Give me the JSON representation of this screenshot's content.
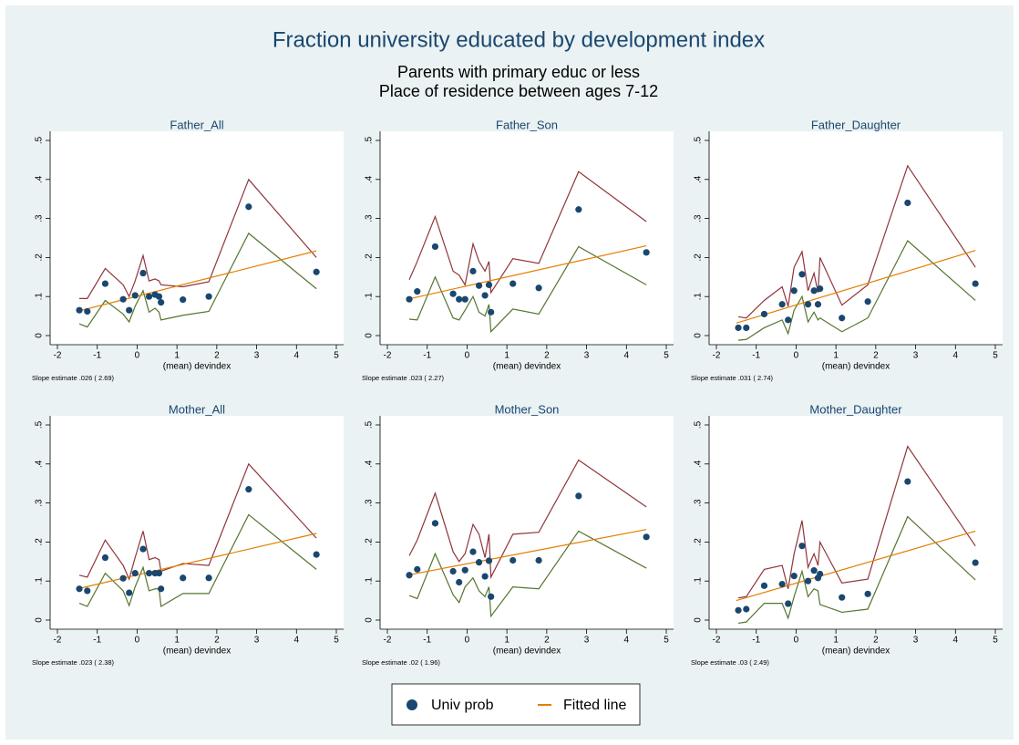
{
  "title": "Fraction university educated by development index",
  "subtitle": [
    "Parents with primary educ or less",
    "Place of residence between ages 7-12"
  ],
  "chart_data": [
    {
      "type": "scatter",
      "title": "Father_All",
      "xlabel": "(mean) devindex",
      "note": "Slope estimate .026 ( 2.69)",
      "x": [
        -1.45,
        -1.25,
        -0.8,
        -0.35,
        -0.2,
        -0.05,
        0.15,
        0.3,
        0.45,
        0.55,
        0.6,
        1.15,
        1.8,
        2.8,
        4.5
      ],
      "xlim": [
        -2,
        5
      ],
      "xticks": [
        -2,
        -1,
        0,
        1,
        2,
        3,
        4,
        5
      ],
      "ylim": [
        0,
        0.5
      ],
      "yticks": [
        0,
        {
          "value": 0.1,
          "label": ".1"
        },
        {
          "value": 0.2,
          "label": ".2"
        },
        {
          "value": 0.3,
          "label": ".3"
        },
        {
          "value": 0.4,
          "label": ".4"
        },
        {
          "value": 0.5,
          "label": ".5"
        }
      ],
      "series": [
        {
          "name": "Univ prob",
          "type": "scatter",
          "color": "#1a476f",
          "values": [
            0.065,
            0.062,
            0.133,
            0.093,
            0.065,
            0.103,
            0.16,
            0.1,
            0.105,
            0.1,
            0.085,
            0.092,
            0.1,
            0.33,
            0.163
          ]
        },
        {
          "name": "Fitted line",
          "type": "line",
          "color": "#e37e00",
          "x": [
            -1.5,
            4.5
          ],
          "values": [
            0.062,
            0.217
          ]
        },
        {
          "type": "line",
          "color": "#90353b",
          "values": [
            0.095,
            0.095,
            0.172,
            0.13,
            0.1,
            0.14,
            0.205,
            0.14,
            0.145,
            0.14,
            0.13,
            0.125,
            0.138,
            0.4,
            0.2
          ]
        },
        {
          "type": "line",
          "color": "#55752f",
          "values": [
            0.03,
            0.022,
            0.09,
            0.055,
            0.035,
            0.075,
            0.115,
            0.06,
            0.07,
            0.06,
            0.04,
            0.052,
            0.062,
            0.262,
            0.12
          ]
        }
      ]
    },
    {
      "type": "scatter",
      "title": "Father_Son",
      "xlabel": "(mean) devindex",
      "note": "Slope estimate .023 ( 2.27)",
      "x": [
        -1.45,
        -1.25,
        -0.8,
        -0.35,
        -0.2,
        -0.05,
        0.15,
        0.3,
        0.45,
        0.55,
        0.6,
        1.15,
        1.8,
        2.8,
        4.5
      ],
      "xlim": [
        -2,
        5
      ],
      "xticks": [
        -2,
        -1,
        0,
        1,
        2,
        3,
        4,
        5
      ],
      "ylim": [
        0,
        0.5
      ],
      "yticks": [
        0,
        {
          "value": 0.1,
          "label": ".1"
        },
        {
          "value": 0.2,
          "label": ".2"
        },
        {
          "value": 0.3,
          "label": ".3"
        },
        {
          "value": 0.4,
          "label": ".4"
        },
        {
          "value": 0.5,
          "label": ".5"
        }
      ],
      "series": [
        {
          "name": "Univ prob",
          "type": "scatter",
          "color": "#1a476f",
          "values": [
            0.093,
            0.113,
            0.228,
            0.107,
            0.093,
            0.093,
            0.165,
            0.128,
            0.103,
            0.13,
            0.06,
            0.133,
            0.122,
            0.323,
            0.213
          ]
        },
        {
          "name": "Fitted line",
          "type": "line",
          "color": "#e37e00",
          "x": [
            -1.5,
            4.5
          ],
          "values": [
            0.093,
            0.23
          ]
        },
        {
          "type": "line",
          "color": "#90353b",
          "values": [
            0.143,
            0.19,
            0.305,
            0.165,
            0.155,
            0.13,
            0.235,
            0.19,
            0.165,
            0.19,
            0.11,
            0.197,
            0.185,
            0.42,
            0.292
          ]
        },
        {
          "type": "line",
          "color": "#55752f",
          "values": [
            0.042,
            0.04,
            0.15,
            0.045,
            0.04,
            0.065,
            0.1,
            0.06,
            0.05,
            0.08,
            0.01,
            0.068,
            0.055,
            0.228,
            0.13
          ]
        }
      ]
    },
    {
      "type": "scatter",
      "title": "Father_Daughter",
      "xlabel": "(mean) devindex",
      "note": "Slope estimate .031 ( 2.74)",
      "x": [
        -1.45,
        -1.25,
        -0.8,
        -0.35,
        -0.2,
        -0.05,
        0.15,
        0.3,
        0.45,
        0.55,
        0.6,
        1.15,
        1.8,
        2.8,
        4.5
      ],
      "xlim": [
        -2,
        5
      ],
      "xticks": [
        -2,
        -1,
        0,
        1,
        2,
        3,
        4,
        5
      ],
      "ylim": [
        0,
        0.5
      ],
      "yticks": [
        0,
        {
          "value": 0.1,
          "label": ".1"
        },
        {
          "value": 0.2,
          "label": ".2"
        },
        {
          "value": 0.3,
          "label": ".3"
        },
        {
          "value": 0.4,
          "label": ".4"
        },
        {
          "value": 0.5,
          "label": ".5"
        }
      ],
      "series": [
        {
          "name": "Univ prob",
          "type": "scatter",
          "color": "#1a476f",
          "values": [
            0.02,
            0.02,
            0.055,
            0.08,
            0.04,
            0.115,
            0.157,
            0.08,
            0.115,
            0.08,
            0.12,
            0.045,
            0.087,
            0.34,
            0.133
          ]
        },
        {
          "name": "Fitted line",
          "type": "line",
          "color": "#e37e00",
          "x": [
            -1.5,
            4.5
          ],
          "values": [
            0.032,
            0.218
          ]
        },
        {
          "type": "line",
          "color": "#90353b",
          "values": [
            0.048,
            0.045,
            0.09,
            0.125,
            0.075,
            0.175,
            0.215,
            0.115,
            0.16,
            0.11,
            0.2,
            0.078,
            0.13,
            0.435,
            0.175
          ]
        },
        {
          "type": "line",
          "color": "#55752f",
          "values": [
            -0.012,
            -0.01,
            0.02,
            0.04,
            0.005,
            0.065,
            0.1,
            0.035,
            0.06,
            0.04,
            0.045,
            0.01,
            0.045,
            0.243,
            0.09
          ]
        }
      ]
    },
    {
      "type": "scatter",
      "title": "Mother_All",
      "xlabel": "(mean) devindex",
      "note": "Slope estimate .023 ( 2.38)",
      "x": [
        -1.45,
        -1.25,
        -0.8,
        -0.35,
        -0.2,
        -0.05,
        0.15,
        0.3,
        0.45,
        0.55,
        0.6,
        1.15,
        1.8,
        2.8,
        4.5
      ],
      "xlim": [
        -2,
        5
      ],
      "xticks": [
        -2,
        -1,
        0,
        1,
        2,
        3,
        4,
        5
      ],
      "ylim": [
        0,
        0.5
      ],
      "yticks": [
        0,
        {
          "value": 0.1,
          "label": ".1"
        },
        {
          "value": 0.2,
          "label": ".2"
        },
        {
          "value": 0.3,
          "label": ".3"
        },
        {
          "value": 0.4,
          "label": ".4"
        },
        {
          "value": 0.5,
          "label": ".5"
        }
      ],
      "series": [
        {
          "name": "Univ prob",
          "type": "scatter",
          "color": "#1a476f",
          "values": [
            0.08,
            0.075,
            0.16,
            0.107,
            0.07,
            0.12,
            0.182,
            0.12,
            0.12,
            0.12,
            0.08,
            0.108,
            0.108,
            0.335,
            0.168
          ]
        },
        {
          "name": "Fitted line",
          "type": "line",
          "color": "#e37e00",
          "x": [
            -1.5,
            4.5
          ],
          "values": [
            0.08,
            0.222
          ]
        },
        {
          "type": "line",
          "color": "#90353b",
          "values": [
            0.115,
            0.11,
            0.205,
            0.14,
            0.105,
            0.16,
            0.228,
            0.155,
            0.16,
            0.155,
            0.125,
            0.145,
            0.14,
            0.4,
            0.21
          ]
        },
        {
          "type": "line",
          "color": "#55752f",
          "values": [
            0.043,
            0.035,
            0.12,
            0.075,
            0.037,
            0.085,
            0.135,
            0.075,
            0.08,
            0.08,
            0.035,
            0.068,
            0.068,
            0.27,
            0.13
          ]
        }
      ]
    },
    {
      "type": "scatter",
      "title": "Mother_Son",
      "xlabel": "(mean) devindex",
      "note": "Slope estimate .02 ( 1.96)",
      "x": [
        -1.45,
        -1.25,
        -0.8,
        -0.35,
        -0.2,
        -0.05,
        0.15,
        0.3,
        0.45,
        0.55,
        0.6,
        1.15,
        1.8,
        2.8,
        4.5
      ],
      "xlim": [
        -2,
        5
      ],
      "xticks": [
        -2,
        -1,
        0,
        1,
        2,
        3,
        4,
        5
      ],
      "ylim": [
        0,
        0.5
      ],
      "yticks": [
        0,
        {
          "value": 0.1,
          "label": ".1"
        },
        {
          "value": 0.2,
          "label": ".2"
        },
        {
          "value": 0.3,
          "label": ".3"
        },
        {
          "value": 0.4,
          "label": ".4"
        },
        {
          "value": 0.5,
          "label": ".5"
        }
      ],
      "series": [
        {
          "name": "Univ prob",
          "type": "scatter",
          "color": "#1a476f",
          "values": [
            0.115,
            0.13,
            0.248,
            0.125,
            0.097,
            0.128,
            0.175,
            0.148,
            0.112,
            0.152,
            0.06,
            0.153,
            0.153,
            0.318,
            0.213
          ]
        },
        {
          "name": "Fitted line",
          "type": "line",
          "color": "#e37e00",
          "x": [
            -1.5,
            4.5
          ],
          "values": [
            0.115,
            0.232
          ]
        },
        {
          "type": "line",
          "color": "#90353b",
          "values": [
            0.165,
            0.205,
            0.325,
            0.175,
            0.15,
            0.17,
            0.245,
            0.22,
            0.16,
            0.22,
            0.11,
            0.22,
            0.225,
            0.41,
            0.29
          ]
        },
        {
          "type": "line",
          "color": "#55752f",
          "values": [
            0.063,
            0.055,
            0.17,
            0.065,
            0.045,
            0.085,
            0.108,
            0.075,
            0.06,
            0.085,
            0.01,
            0.085,
            0.08,
            0.228,
            0.133
          ]
        }
      ]
    },
    {
      "type": "scatter",
      "title": "Mother_Daughter",
      "xlabel": "(mean) devindex",
      "note": "Slope estimate .03 ( 2.49)",
      "x": [
        -1.45,
        -1.25,
        -0.8,
        -0.35,
        -0.2,
        -0.05,
        0.15,
        0.3,
        0.45,
        0.55,
        0.6,
        1.15,
        1.8,
        2.8,
        4.5
      ],
      "xlim": [
        -2,
        5
      ],
      "xticks": [
        -2,
        -1,
        0,
        1,
        2,
        3,
        4,
        5
      ],
      "ylim": [
        0,
        0.5
      ],
      "yticks": [
        0,
        {
          "value": 0.1,
          "label": ".1"
        },
        {
          "value": 0.2,
          "label": ".2"
        },
        {
          "value": 0.3,
          "label": ".3"
        },
        {
          "value": 0.4,
          "label": ".4"
        },
        {
          "value": 0.5,
          "label": ".5"
        }
      ],
      "series": [
        {
          "name": "Univ prob",
          "type": "scatter",
          "color": "#1a476f",
          "values": [
            0.025,
            0.028,
            0.088,
            0.092,
            0.042,
            0.113,
            0.19,
            0.1,
            0.127,
            0.108,
            0.118,
            0.058,
            0.067,
            0.355,
            0.147
          ]
        },
        {
          "name": "Fitted line",
          "type": "line",
          "color": "#e37e00",
          "x": [
            -1.5,
            4.5
          ],
          "values": [
            0.05,
            0.228
          ]
        },
        {
          "type": "line",
          "color": "#90353b",
          "values": [
            0.057,
            0.06,
            0.13,
            0.14,
            0.08,
            0.17,
            0.255,
            0.135,
            0.17,
            0.14,
            0.2,
            0.095,
            0.105,
            0.445,
            0.19
          ]
        },
        {
          "type": "line",
          "color": "#55752f",
          "values": [
            -0.008,
            -0.005,
            0.043,
            0.043,
            0.005,
            0.06,
            0.125,
            0.06,
            0.08,
            0.075,
            0.04,
            0.02,
            0.028,
            0.265,
            0.103
          ]
        }
      ]
    }
  ]
}
